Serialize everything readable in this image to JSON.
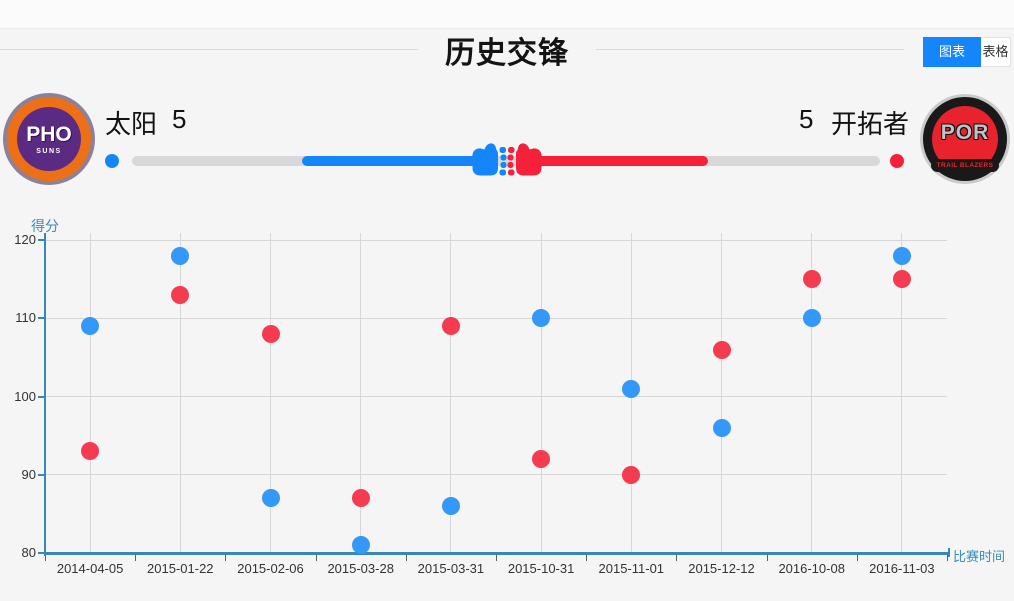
{
  "header": {
    "title": "历史交锋",
    "tabs": [
      {
        "label": "图表",
        "active": true
      },
      {
        "label": "表格",
        "active": false
      }
    ]
  },
  "teams": {
    "home": {
      "name": "太阳",
      "wins": "5",
      "logo_abbr": "PHO",
      "logo_sub": "SUNS",
      "accent_color": "#1486fa",
      "logo_colors": {
        "outer_ring": "#8d8099",
        "mid_ring": "#ed7017",
        "inner": "#5b2b84"
      }
    },
    "away": {
      "name": "开拓者",
      "wins": "5",
      "logo_abbr": "POR",
      "logo_sub": "TRAIL BLAZERS",
      "accent_color": "#f5213b",
      "logo_colors": {
        "outer_ring": "#cacaca",
        "mid_ring": "#191919",
        "inner": "#e8232e"
      }
    }
  },
  "chart_data": {
    "type": "scatter",
    "title": "历史交锋",
    "xlabel": "比赛时间",
    "ylabel": "得分",
    "ylim": [
      80,
      120
    ],
    "yticks": [
      80,
      90,
      100,
      110,
      120
    ],
    "grid": true,
    "legend": "none",
    "categories": [
      "2014-04-05",
      "2015-01-22",
      "2015-02-06",
      "2015-03-28",
      "2015-03-31",
      "2015-10-31",
      "2015-11-01",
      "2015-12-12",
      "2016-10-08",
      "2016-11-03"
    ],
    "series": [
      {
        "name": "太阳",
        "color": "#3398f7",
        "values": [
          109,
          118,
          87,
          81,
          86,
          110,
          101,
          96,
          110,
          118
        ]
      },
      {
        "name": "开拓者",
        "color": "#f43b50",
        "values": [
          93,
          113,
          108,
          87,
          109,
          92,
          90,
          106,
          115,
          115
        ]
      }
    ]
  }
}
